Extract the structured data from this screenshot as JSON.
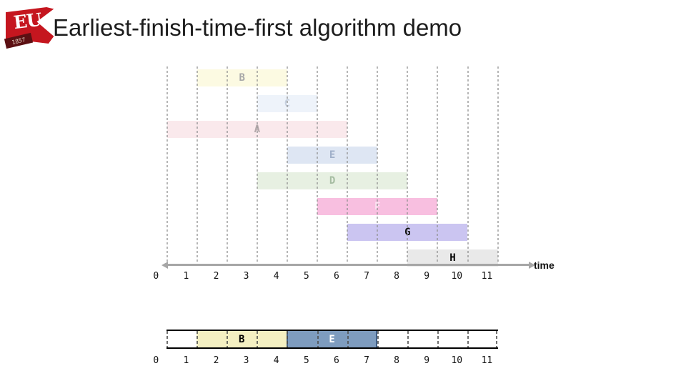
{
  "slide": {
    "title": "Earliest-finish-time-first algorithm demo",
    "logo": {
      "text": "EU",
      "year": "1857",
      "flag_color": "#c5161f",
      "ribbon_color": "#5c1013"
    }
  },
  "chart_data": {
    "type": "interval-schedule",
    "title": "Earliest-finish-time-first algorithm demo",
    "time_axis": {
      "label": "time",
      "min": 0,
      "max": 11,
      "ticks": [
        "0",
        "1",
        "2",
        "3",
        "4",
        "5",
        "6",
        "7",
        "8",
        "9",
        "10",
        "11"
      ]
    },
    "jobs": [
      {
        "name": "B",
        "start": 1,
        "finish": 4,
        "bar_color": "#fcfae2",
        "label_color": "#a8a8a8"
      },
      {
        "name": "C",
        "start": 3,
        "finish": 5,
        "bar_color": "#eef3fa",
        "label_color": "#c6d0df"
      },
      {
        "name": "A",
        "start": 0,
        "finish": 6,
        "bar_color": "#fae9ec",
        "label_color": "#b3a8aa"
      },
      {
        "name": "E",
        "start": 4,
        "finish": 7,
        "bar_color": "#dee6f3",
        "label_color": "#9fafc9"
      },
      {
        "name": "D",
        "start": 3,
        "finish": 8,
        "bar_color": "#e7f0e2",
        "label_color": "#a5bca1"
      },
      {
        "name": "F",
        "start": 5,
        "finish": 9,
        "bar_color": "#f8bfe0",
        "label_color": "#fbe4f2"
      },
      {
        "name": "G",
        "start": 6,
        "finish": 10,
        "bar_color": "#cbc5f1",
        "label_color": "#0d0d0d"
      },
      {
        "name": "H",
        "start": 8,
        "finish": 11,
        "bar_color": "#e9e9e9",
        "label_color": "#000000"
      }
    ],
    "selected_schedule": {
      "segments": [
        {
          "name": "B",
          "start": 1,
          "finish": 4,
          "color": "#f4f0c2",
          "label_color": "#000000",
          "edge_color": ""
        },
        {
          "name": "E",
          "start": 4,
          "finish": 7,
          "color": "#7e9cbf",
          "label_color": "#ffffff",
          "edge_color": "#3f5e86"
        }
      ],
      "ticks": [
        "0",
        "1",
        "2",
        "3",
        "4",
        "5",
        "6",
        "7",
        "8",
        "9",
        "10",
        "11"
      ]
    },
    "layout_hints": {
      "grid": "dashed-vertical",
      "axis_arrows": "both-ends"
    }
  }
}
